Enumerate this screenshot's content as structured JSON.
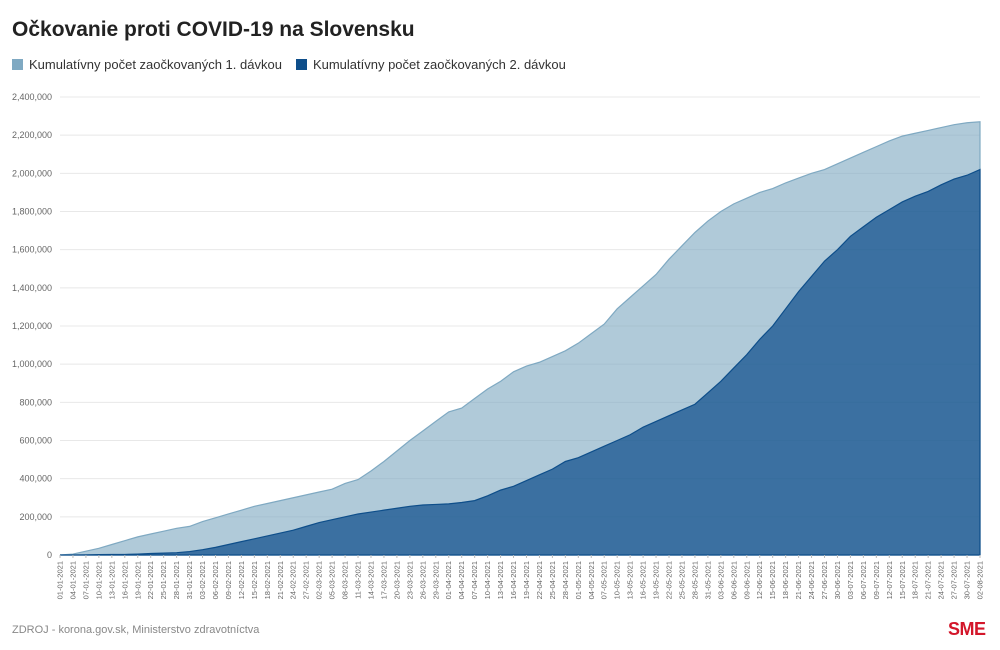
{
  "title": "Očkovanie proti COVID-19 na Slovensku",
  "source": "ZDROJ - korona.gov.sk, Ministerstvo zdravotníctva",
  "logo": "SME",
  "chart_data": {
    "type": "area",
    "title": "Očkovanie proti COVID-19 na Slovensku",
    "ylim": [
      0,
      2400000
    ],
    "y_ticks": [
      "0",
      "200,000",
      "400,000",
      "600,000",
      "800,000",
      "1,000,000",
      "1,200,000",
      "1,400,000",
      "1,600,000",
      "1,800,000",
      "2,000,000",
      "2,200,000",
      "2,400,000"
    ],
    "grid": true,
    "legend_position": "top-left",
    "x_ticks": [
      "01-01-2021",
      "04-01-2021",
      "07-01-2021",
      "10-01-2021",
      "13-01-2021",
      "16-01-2021",
      "19-01-2021",
      "22-01-2021",
      "25-01-2021",
      "28-01-2021",
      "31-01-2021",
      "03-02-2021",
      "06-02-2021",
      "09-02-2021",
      "12-02-2021",
      "15-02-2021",
      "18-02-2021",
      "21-02-2021",
      "24-02-2021",
      "27-02-2021",
      "02-03-2021",
      "05-03-2021",
      "08-03-2021",
      "11-03-2021",
      "14-03-2021",
      "17-03-2021",
      "20-03-2021",
      "23-03-2021",
      "26-03-2021",
      "29-03-2021",
      "01-04-2021",
      "04-04-2021",
      "07-04-2021",
      "10-04-2021",
      "13-04-2021",
      "16-04-2021",
      "19-04-2021",
      "22-04-2021",
      "25-04-2021",
      "28-04-2021",
      "01-05-2021",
      "04-05-2021",
      "07-05-2021",
      "10-05-2021",
      "13-05-2021",
      "16-05-2021",
      "19-05-2021",
      "22-05-2021",
      "25-05-2021",
      "28-05-2021",
      "31-05-2021",
      "03-06-2021",
      "06-06-2021",
      "09-06-2021",
      "12-06-2021",
      "15-06-2021",
      "18-06-2021",
      "21-06-2021",
      "24-06-2021",
      "27-06-2021",
      "30-06-2021",
      "03-07-2021",
      "06-07-2021",
      "09-07-2021",
      "12-07-2021",
      "15-07-2021",
      "18-07-2021",
      "21-07-2021",
      "24-07-2021",
      "27-07-2021",
      "30-07-2021",
      "02-08-2021"
    ],
    "x": [
      "01-01-2021",
      "04-01-2021",
      "07-01-2021",
      "10-01-2021",
      "13-01-2021",
      "16-01-2021",
      "19-01-2021",
      "22-01-2021",
      "25-01-2021",
      "28-01-2021",
      "31-01-2021",
      "03-02-2021",
      "06-02-2021",
      "09-02-2021",
      "12-02-2021",
      "15-02-2021",
      "18-02-2021",
      "21-02-2021",
      "24-02-2021",
      "27-02-2021",
      "02-03-2021",
      "05-03-2021",
      "08-03-2021",
      "11-03-2021",
      "14-03-2021",
      "17-03-2021",
      "20-03-2021",
      "23-03-2021",
      "26-03-2021",
      "29-03-2021",
      "01-04-2021",
      "04-04-2021",
      "07-04-2021",
      "10-04-2021",
      "13-04-2021",
      "16-04-2021",
      "19-04-2021",
      "22-04-2021",
      "25-04-2021",
      "28-04-2021",
      "01-05-2021",
      "04-05-2021",
      "07-05-2021",
      "10-05-2021",
      "13-05-2021",
      "16-05-2021",
      "19-05-2021",
      "22-05-2021",
      "25-05-2021",
      "28-05-2021",
      "31-05-2021",
      "03-06-2021",
      "06-06-2021",
      "09-06-2021",
      "12-06-2021",
      "15-06-2021",
      "18-06-2021",
      "21-06-2021",
      "24-06-2021",
      "27-06-2021",
      "30-06-2021",
      "03-07-2021",
      "06-07-2021",
      "09-07-2021",
      "12-07-2021",
      "15-07-2021",
      "18-07-2021",
      "21-07-2021",
      "24-07-2021",
      "27-07-2021",
      "30-07-2021",
      "02-08-2021"
    ],
    "series": [
      {
        "name": "Kumulatívny počet zaočkovaných 1. dávkou",
        "color": "#7fa9c2",
        "values": [
          0,
          5000,
          20000,
          35000,
          55000,
          75000,
          95000,
          110000,
          125000,
          140000,
          150000,
          175000,
          195000,
          215000,
          235000,
          255000,
          270000,
          285000,
          300000,
          315000,
          330000,
          345000,
          375000,
          395000,
          440000,
          490000,
          545000,
          600000,
          650000,
          700000,
          750000,
          770000,
          820000,
          870000,
          910000,
          960000,
          990000,
          1010000,
          1040000,
          1070000,
          1110000,
          1160000,
          1210000,
          1290000,
          1350000,
          1410000,
          1470000,
          1550000,
          1620000,
          1690000,
          1750000,
          1800000,
          1840000,
          1870000,
          1900000,
          1920000,
          1950000,
          1975000,
          2000000,
          2020000,
          2050000,
          2080000,
          2110000,
          2140000,
          2170000,
          2195000,
          2210000,
          2225000,
          2240000,
          2255000,
          2265000,
          2270000
        ]
      },
      {
        "name": "Kumulatívny počet zaočkovaných 2. dávkou",
        "color": "#0e4e8a",
        "values": [
          0,
          0,
          1000,
          2000,
          3000,
          3000,
          5000,
          8000,
          10000,
          12000,
          18000,
          28000,
          40000,
          55000,
          70000,
          85000,
          100000,
          115000,
          130000,
          150000,
          170000,
          185000,
          200000,
          215000,
          225000,
          235000,
          245000,
          255000,
          262000,
          265000,
          268000,
          275000,
          285000,
          310000,
          340000,
          360000,
          390000,
          420000,
          450000,
          490000,
          510000,
          540000,
          570000,
          600000,
          630000,
          670000,
          700000,
          730000,
          760000,
          790000,
          850000,
          910000,
          980000,
          1050000,
          1130000,
          1200000,
          1290000,
          1380000,
          1460000,
          1540000,
          1600000,
          1670000,
          1720000,
          1770000,
          1810000,
          1850000,
          1880000,
          1905000,
          1940000,
          1970000,
          1990000,
          2020000
        ]
      }
    ]
  }
}
